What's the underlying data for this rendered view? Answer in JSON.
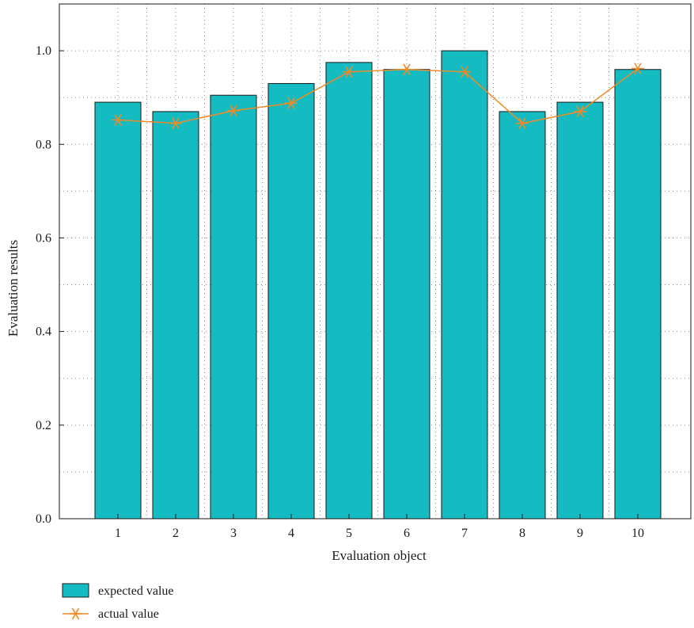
{
  "chart_data": {
    "type": "bar",
    "title": "",
    "xlabel": "Evaluation object",
    "ylabel": "Evaluation results",
    "categories": [
      "1",
      "2",
      "3",
      "4",
      "5",
      "6",
      "7",
      "8",
      "9",
      "10"
    ],
    "ylim": [
      0,
      1.1
    ],
    "yticks": [
      0.0,
      0.2,
      0.4,
      0.6,
      0.8,
      1.0
    ],
    "ytick_labels": [
      "0.0",
      "0.2",
      "0.4",
      "0.6",
      "0.8",
      "1.0"
    ],
    "grid": true,
    "legend_position": "bottom-left",
    "series": [
      {
        "name": "expected value",
        "kind": "bar",
        "color": "#14bcc2",
        "values": [
          0.89,
          0.87,
          0.905,
          0.93,
          0.975,
          0.96,
          1.0,
          0.87,
          0.89,
          0.96
        ]
      },
      {
        "name": "actual value",
        "kind": "line",
        "marker": "asterisk",
        "color": "#f08a24",
        "values": [
          0.852,
          0.845,
          0.872,
          0.888,
          0.955,
          0.96,
          0.955,
          0.845,
          0.87,
          0.962
        ]
      }
    ]
  }
}
